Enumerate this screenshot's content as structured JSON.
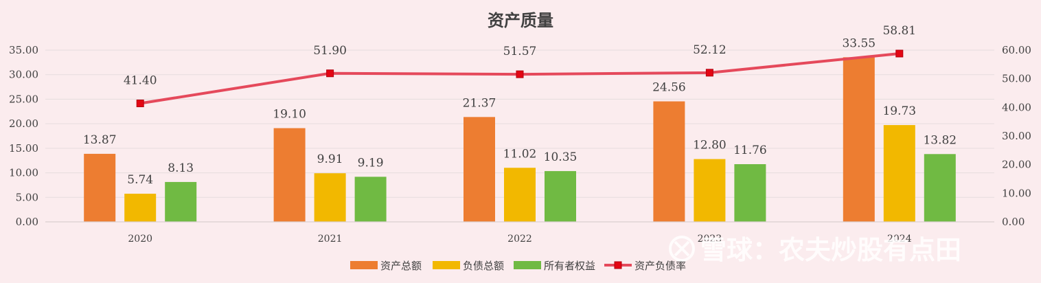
{
  "chart_data": {
    "type": "bar",
    "title": "资产质量",
    "categories": [
      "2020",
      "2021",
      "2022",
      "2023",
      "2024"
    ],
    "series": [
      {
        "name": "资产总额",
        "type": "bar",
        "axis": "left",
        "color": "#ed7d31",
        "values": [
          13.87,
          19.1,
          21.37,
          24.56,
          33.55
        ]
      },
      {
        "name": "负债总额",
        "type": "bar",
        "axis": "left",
        "color": "#f2b800",
        "values": [
          5.74,
          9.91,
          11.02,
          12.8,
          19.73
        ]
      },
      {
        "name": "所有者权益",
        "type": "bar",
        "axis": "left",
        "color": "#70ba43",
        "values": [
          8.13,
          9.19,
          10.35,
          11.76,
          13.82
        ]
      },
      {
        "name": "资产负债率",
        "type": "line",
        "axis": "right",
        "color": "#e5495b",
        "marker_color": "#e30613",
        "values": [
          41.4,
          51.9,
          51.57,
          52.12,
          58.81
        ]
      }
    ],
    "data_labels": {
      "资产总额": [
        "13.87",
        "19.10",
        "21.37",
        "24.56",
        "33.55"
      ],
      "负债总额": [
        "5.74",
        "9.91",
        "11.02",
        "12.80",
        "19.73"
      ],
      "所有者权益": [
        "8.13",
        "9.19",
        "10.35",
        "11.76",
        "13.82"
      ],
      "资产负债率": [
        "41.40",
        "51.90",
        "51.57",
        "52.12",
        "58.81"
      ]
    },
    "y_left": {
      "min": 0,
      "max": 35,
      "step": 5,
      "ticks": [
        "0.00",
        "5.00",
        "10.00",
        "15.00",
        "20.00",
        "25.00",
        "30.00",
        "35.00"
      ]
    },
    "y_right": {
      "min": 0,
      "max": 60,
      "step": 10,
      "ticks": [
        "0.00",
        "10.00",
        "20.00",
        "30.00",
        "40.00",
        "50.00",
        "60.00"
      ]
    },
    "grid": true,
    "legend_position": "bottom"
  },
  "watermark": "雪球：农夫炒股有点田"
}
